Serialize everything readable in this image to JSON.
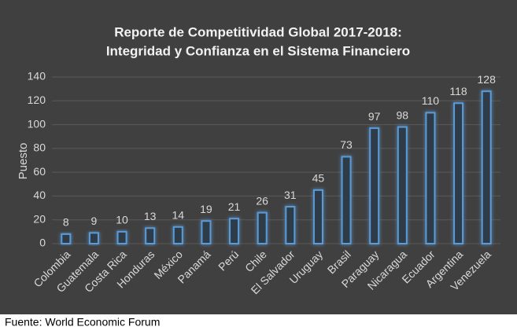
{
  "chart_data": {
    "type": "bar",
    "title": [
      "Reporte de Competitividad Global 2017-2018:",
      "Integridad y Confianza en el Sistema Financiero"
    ],
    "y_label": "Puesto",
    "categories": [
      "Colombia",
      "Guatemala",
      "Costa Rica",
      "Honduras",
      "México",
      "Panamá",
      "Perú",
      "Chile",
      "El Salvador",
      "Uruguay",
      "Brasil",
      "Paraguay",
      "Nicaragua",
      "Ecuador",
      "Argentina",
      "Venezuela"
    ],
    "values": [
      8,
      9,
      10,
      13,
      14,
      19,
      21,
      26,
      31,
      45,
      73,
      97,
      98,
      110,
      118,
      128
    ],
    "color": "#5b9bd5",
    "ylim": [
      0,
      140
    ],
    "yticks": [
      0,
      20,
      40,
      60,
      80,
      100,
      120,
      140
    ],
    "grid": true,
    "source": "Fuente: World Economic Forum"
  }
}
